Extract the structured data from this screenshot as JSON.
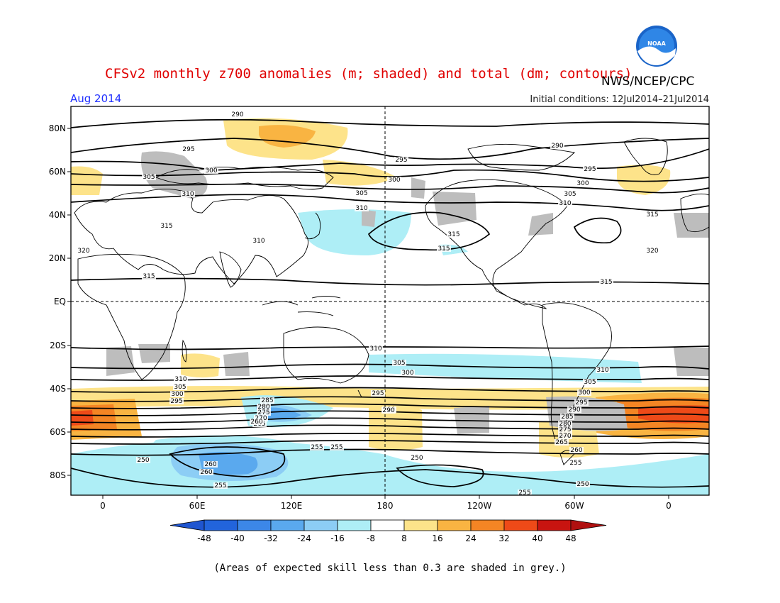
{
  "header": {
    "title": "CFSv2 monthly z700 anomalies (m; shaded) and total (dm; contours)",
    "agency": "NWS/NCEP/CPC",
    "logo_text": "NOAA",
    "period": "Aug 2014",
    "initial_conditions": "Initial conditions: 12Jul2014–21Jul2014"
  },
  "colors": {
    "title": "#e00000",
    "period": "#2030ff",
    "frame": "#000000",
    "grey": "#bdbdbd",
    "blue1": "#aeeef6",
    "blue2": "#8ccdf5",
    "blue3": "#5aa9ee",
    "blue4": "#3c87e8",
    "blue5": "#2264dc",
    "yellow": "#fde38a",
    "orange1": "#f9b442",
    "orange2": "#f48524",
    "red1": "#ee4a18",
    "red2": "#c81410"
  },
  "map": {
    "lat_labels": [
      "80N",
      "60N",
      "40N",
      "20N",
      "EQ",
      "20S",
      "40S",
      "60S",
      "80S"
    ],
    "lon_labels": [
      "0",
      "60E",
      "120E",
      "180",
      "120W",
      "60W",
      "0"
    ],
    "contour_labels": [
      {
        "text": "290"
      },
      {
        "text": "295"
      },
      {
        "text": "300"
      },
      {
        "text": "305"
      },
      {
        "text": "310"
      },
      {
        "text": "315"
      },
      {
        "text": "320"
      },
      {
        "text": "310"
      },
      {
        "text": "315"
      },
      {
        "text": "315"
      },
      {
        "text": "295"
      },
      {
        "text": "300"
      },
      {
        "text": "305"
      },
      {
        "text": "310"
      },
      {
        "text": "315"
      },
      {
        "text": "290"
      },
      {
        "text": "295"
      },
      {
        "text": "300"
      },
      {
        "text": "305"
      },
      {
        "text": "310"
      },
      {
        "text": "315"
      },
      {
        "text": "320"
      },
      {
        "text": "315"
      },
      {
        "text": "315"
      },
      {
        "text": "310"
      },
      {
        "text": "305"
      },
      {
        "text": "300"
      },
      {
        "text": "295"
      },
      {
        "text": "310"
      },
      {
        "text": "305"
      },
      {
        "text": "300"
      },
      {
        "text": "295"
      },
      {
        "text": "290"
      },
      {
        "text": "285"
      },
      {
        "text": "280"
      },
      {
        "text": "275"
      },
      {
        "text": "270"
      },
      {
        "text": "265"
      },
      {
        "text": "260"
      },
      {
        "text": "290"
      },
      {
        "text": "255"
      },
      {
        "text": "255"
      },
      {
        "text": "250"
      },
      {
        "text": "260"
      },
      {
        "text": "260"
      },
      {
        "text": "255"
      },
      {
        "text": "250"
      },
      {
        "text": "310"
      },
      {
        "text": "305"
      },
      {
        "text": "300"
      },
      {
        "text": "295"
      },
      {
        "text": "290"
      },
      {
        "text": "285"
      },
      {
        "text": "280"
      },
      {
        "text": "275"
      },
      {
        "text": "270"
      },
      {
        "text": "265"
      },
      {
        "text": "260"
      },
      {
        "text": "255"
      },
      {
        "text": "250"
      },
      {
        "text": "255"
      }
    ]
  },
  "colorbar": {
    "labels": [
      "-48",
      "-40",
      "-32",
      "-24",
      "-16",
      "-8",
      "8",
      "16",
      "24",
      "32",
      "40",
      "48"
    ]
  },
  "footer": {
    "note": "(Areas of expected skill less than 0.3 are shaded in grey.)"
  }
}
